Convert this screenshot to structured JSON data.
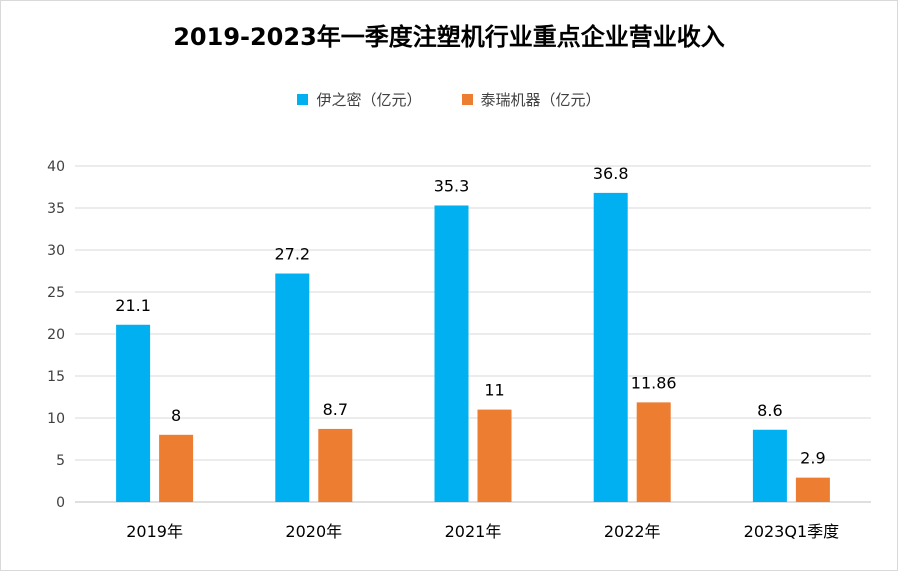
{
  "chart_data": {
    "type": "bar",
    "title": "2019-2023年一季度注塑机行业重点企业营业收入",
    "categories": [
      "2019年",
      "2020年",
      "2021年",
      "2022年",
      "2023Q1季度"
    ],
    "series": [
      {
        "name": "伊之密（亿元）",
        "color": "#00b0f0",
        "values": [
          21.1,
          27.2,
          35.3,
          36.8,
          8.6
        ],
        "labels": [
          "21.1",
          "27.2",
          "35.3",
          "36.8",
          "8.6"
        ]
      },
      {
        "name": "泰瑞机器（亿元）",
        "color": "#ed7d31",
        "values": [
          8,
          8.7,
          11,
          11.86,
          2.9
        ],
        "labels": [
          "8",
          "8.7",
          "11",
          "11.86",
          "2.9"
        ]
      }
    ],
    "ylim": [
      0,
      40
    ],
    "yticks": [
      "0",
      "5",
      "10",
      "15",
      "20",
      "25",
      "30",
      "35",
      "40"
    ],
    "grid": true,
    "legend_position": "top"
  }
}
